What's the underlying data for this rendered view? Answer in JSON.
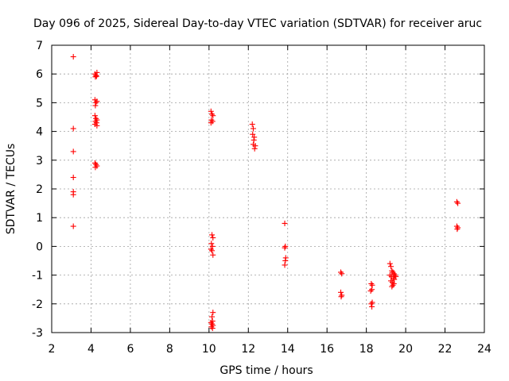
{
  "chart_data": {
    "type": "scatter",
    "title": "Day 096 of 2025, Sidereal Day-to-day VTEC variation (SDTVAR) for receiver aruc",
    "xlabel": "GPS time / hours",
    "ylabel": "SDTVAR / TECUs",
    "xlim": [
      2,
      24
    ],
    "ylim": [
      -3,
      7
    ],
    "xticks": [
      2,
      4,
      6,
      8,
      10,
      12,
      14,
      16,
      18,
      20,
      22,
      24
    ],
    "yticks": [
      -3,
      -2,
      -1,
      0,
      1,
      2,
      3,
      4,
      5,
      6,
      7
    ],
    "grid": true,
    "marker": "+",
    "marker_color": "#ff0000",
    "series": [
      {
        "name": "SDTVAR",
        "points": [
          [
            3.1,
            6.6
          ],
          [
            3.1,
            4.1
          ],
          [
            3.1,
            3.3
          ],
          [
            3.1,
            2.4
          ],
          [
            3.1,
            1.9
          ],
          [
            3.1,
            1.8
          ],
          [
            3.1,
            0.7
          ],
          [
            4.2,
            6.0
          ],
          [
            4.25,
            5.95
          ],
          [
            4.3,
            6.05
          ],
          [
            4.22,
            5.9
          ],
          [
            4.28,
            5.92
          ],
          [
            4.2,
            5.1
          ],
          [
            4.25,
            5.0
          ],
          [
            4.3,
            5.05
          ],
          [
            4.22,
            4.9
          ],
          [
            4.2,
            4.55
          ],
          [
            4.25,
            4.45
          ],
          [
            4.3,
            4.4
          ],
          [
            4.22,
            4.35
          ],
          [
            4.28,
            4.3
          ],
          [
            4.2,
            4.25
          ],
          [
            4.3,
            4.2
          ],
          [
            4.2,
            2.9
          ],
          [
            4.25,
            2.85
          ],
          [
            4.3,
            2.8
          ],
          [
            4.22,
            2.75
          ],
          [
            10.1,
            4.7
          ],
          [
            10.15,
            4.6
          ],
          [
            10.2,
            4.55
          ],
          [
            10.12,
            4.4
          ],
          [
            10.18,
            4.35
          ],
          [
            10.1,
            4.3
          ],
          [
            10.15,
            0.4
          ],
          [
            10.2,
            0.3
          ],
          [
            10.12,
            0.1
          ],
          [
            10.18,
            0.0
          ],
          [
            10.1,
            -0.1
          ],
          [
            10.15,
            -0.15
          ],
          [
            10.2,
            -0.3
          ],
          [
            10.2,
            -2.3
          ],
          [
            10.15,
            -2.45
          ],
          [
            10.18,
            -2.6
          ],
          [
            10.1,
            -2.65
          ],
          [
            10.15,
            -2.7
          ],
          [
            10.2,
            -2.75
          ],
          [
            10.12,
            -2.8
          ],
          [
            10.18,
            -2.85
          ],
          [
            12.2,
            4.25
          ],
          [
            12.25,
            4.1
          ],
          [
            12.22,
            3.9
          ],
          [
            12.3,
            3.8
          ],
          [
            12.28,
            3.7
          ],
          [
            12.25,
            3.55
          ],
          [
            12.35,
            3.5
          ],
          [
            12.32,
            3.4
          ],
          [
            13.85,
            0.8
          ],
          [
            13.88,
            0.0
          ],
          [
            13.85,
            -0.05
          ],
          [
            13.9,
            -0.4
          ],
          [
            13.88,
            -0.5
          ],
          [
            13.85,
            -0.65
          ],
          [
            16.7,
            -0.9
          ],
          [
            16.75,
            -0.95
          ],
          [
            16.7,
            -1.6
          ],
          [
            16.75,
            -1.7
          ],
          [
            16.72,
            -1.75
          ],
          [
            18.25,
            -1.3
          ],
          [
            18.3,
            -1.35
          ],
          [
            18.28,
            -1.5
          ],
          [
            18.22,
            -1.55
          ],
          [
            18.3,
            -1.95
          ],
          [
            18.25,
            -2.0
          ],
          [
            18.28,
            -2.1
          ],
          [
            19.2,
            -0.6
          ],
          [
            19.25,
            -0.7
          ],
          [
            19.3,
            -0.85
          ],
          [
            19.35,
            -0.9
          ],
          [
            19.4,
            -0.95
          ],
          [
            19.2,
            -1.0
          ],
          [
            19.28,
            -1.05
          ],
          [
            19.45,
            -1.0
          ],
          [
            19.5,
            -1.05
          ],
          [
            19.38,
            -1.1
          ],
          [
            19.42,
            -1.15
          ],
          [
            19.25,
            -1.2
          ],
          [
            19.32,
            -1.25
          ],
          [
            19.4,
            -1.3
          ],
          [
            19.35,
            -1.35
          ],
          [
            19.3,
            -1.4
          ],
          [
            22.6,
            1.55
          ],
          [
            22.65,
            1.5
          ],
          [
            22.6,
            0.7
          ],
          [
            22.65,
            0.65
          ],
          [
            22.62,
            0.6
          ]
        ]
      }
    ]
  }
}
